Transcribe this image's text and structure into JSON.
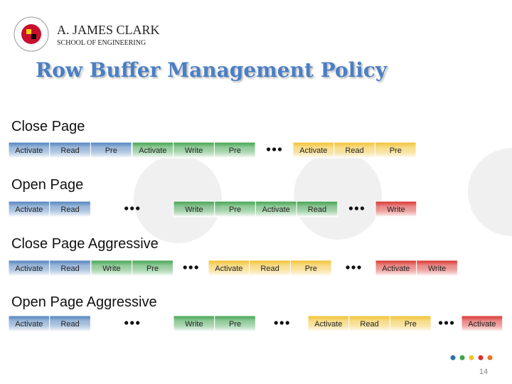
{
  "header": {
    "org_line1": "A. JAMES CLARK",
    "org_line2": "SCHOOL OF ENGINEERING"
  },
  "title": "Row Buffer Management Policy",
  "sections": [
    {
      "label": "Close Page",
      "groups": [
        {
          "color": "#4f81bd",
          "cells": [
            "Activate",
            "Read",
            "Pre"
          ]
        },
        {
          "color": "#3fa34d",
          "cells": [
            "Activate",
            "Write",
            "Pre"
          ]
        },
        {
          "color": "#f2c12e",
          "cells": [
            "Activate",
            "Read",
            "Pre"
          ]
        }
      ]
    },
    {
      "label": "Open Page",
      "groups": [
        {
          "color": "#4f81bd",
          "cells": [
            "Activate",
            "Read"
          ]
        },
        {
          "color": "#3fa34d",
          "cells": [
            "Write",
            "Pre",
            "Activate",
            "Read"
          ]
        },
        {
          "color": "#d9302b",
          "cells": [
            "Write"
          ]
        }
      ]
    },
    {
      "label": "Close Page Aggressive",
      "groups": [
        {
          "color": "#4f81bd",
          "cells": [
            "Activate",
            "Read"
          ]
        },
        {
          "color": "#3fa34d",
          "cells": [
            "Write",
            "Pre"
          ]
        },
        {
          "color": "#f2c12e",
          "cells": [
            "Activate",
            "Read",
            "Pre"
          ]
        },
        {
          "color": "#d9302b",
          "cells": [
            "Activate",
            "Write"
          ]
        }
      ]
    },
    {
      "label": "Open Page Aggressive",
      "groups": [
        {
          "color": "#4f81bd",
          "cells": [
            "Activate",
            "Read"
          ]
        },
        {
          "color": "#3fa34d",
          "cells": [
            "Write",
            "Pre"
          ]
        },
        {
          "color": "#f2c12e",
          "cells": [
            "Activate",
            "Read",
            "Pre"
          ]
        },
        {
          "color": "#d9302b",
          "cells": [
            "Activate"
          ]
        }
      ]
    }
  ],
  "page_number": "14"
}
